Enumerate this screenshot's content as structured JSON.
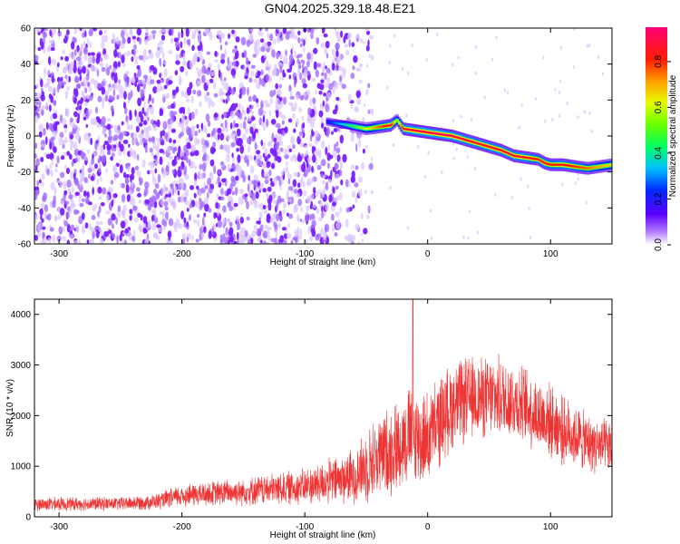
{
  "chart_data": [
    {
      "type": "heatmap",
      "title": "GN04.2025.329.18.48.E21",
      "xlabel": "Height of straight line (km)",
      "ylabel": "Frequency (Hz)",
      "xlim": [
        -320,
        150
      ],
      "ylim": [
        -60,
        60
      ],
      "xticks": [
        -300,
        -200,
        -100,
        0,
        100
      ],
      "yticks": [
        -60,
        -40,
        -20,
        0,
        20,
        40,
        60
      ],
      "colorbar": {
        "label": "Normalized spectral amplitude",
        "range": [
          0,
          0.95
        ],
        "ticks": [
          0.0,
          0.2,
          0.4,
          0.6,
          0.8
        ]
      },
      "noise_region": {
        "x_range": [
          -320,
          -70
        ],
        "amplitude": "low (0.0-0.15)"
      },
      "ridge": {
        "x": [
          -82,
          -65,
          -50,
          -40,
          -30,
          -25,
          -20,
          -10,
          0,
          10,
          20,
          30,
          40,
          50,
          60,
          70,
          80,
          90,
          95,
          100,
          110,
          120,
          130,
          140,
          150
        ],
        "frequency": [
          8,
          6,
          4,
          5,
          6,
          9,
          4,
          3,
          2,
          1,
          0,
          -2,
          -4,
          -6,
          -8,
          -11,
          -12,
          -13,
          -15,
          -16,
          -16,
          -17,
          -18,
          -17,
          -16
        ],
        "amplitude": [
          0.2,
          0.4,
          0.6,
          0.75,
          0.85,
          0.5,
          0.85,
          0.9,
          0.9,
          0.9,
          0.9,
          0.85,
          0.85,
          0.85,
          0.85,
          0.85,
          0.85,
          0.8,
          0.85,
          0.8,
          0.85,
          0.8,
          0.75,
          0.7,
          0.65
        ]
      }
    },
    {
      "type": "line",
      "xlabel": "Height of straight line (km)",
      "ylabel": "SNR (10 * v/v)",
      "xlim": [
        -320,
        150
      ],
      "ylim": [
        0,
        4300
      ],
      "xticks": [
        -300,
        -200,
        -100,
        0,
        100
      ],
      "yticks": [
        0,
        1000,
        2000,
        3000,
        4000
      ],
      "color": "#ee3333",
      "envelope": {
        "x": [
          -320,
          -250,
          -220,
          -200,
          -150,
          -100,
          -80,
          -60,
          -50,
          -40,
          -30,
          -20,
          -15,
          -10,
          0,
          10,
          20,
          30,
          40,
          50,
          60,
          70,
          80,
          90,
          100,
          110,
          120,
          130,
          140,
          150
        ],
        "mean": [
          250,
          260,
          300,
          420,
          500,
          600,
          700,
          800,
          1000,
          1200,
          1300,
          1500,
          1650,
          1550,
          1550,
          1900,
          2200,
          2300,
          2350,
          2350,
          2350,
          2300,
          2200,
          2000,
          1900,
          1700,
          1600,
          1450,
          1400,
          1350
        ],
        "spread": [
          150,
          150,
          180,
          250,
          300,
          400,
          500,
          600,
          800,
          900,
          1000,
          1000,
          1100,
          1100,
          1000,
          1000,
          950,
          950,
          900,
          900,
          900,
          900,
          850,
          850,
          800,
          750,
          700,
          650,
          600,
          600
        ]
      },
      "peak": {
        "x": -12,
        "y": 4300
      }
    }
  ]
}
